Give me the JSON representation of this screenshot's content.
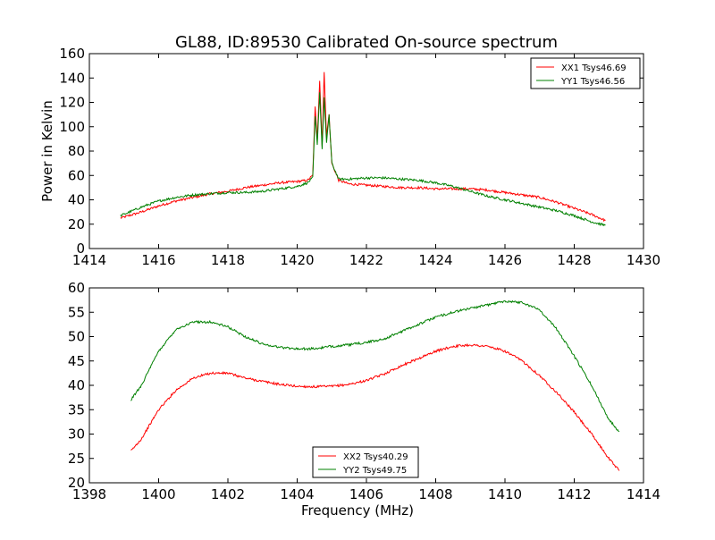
{
  "title": "GL88, ID:89530 Calibrated On-source spectrum",
  "chart_data": [
    {
      "type": "line",
      "xlabel": "",
      "ylabel": "Power in Kelvin",
      "xlim": [
        1414,
        1430
      ],
      "ylim": [
        0,
        160
      ],
      "xticks": [
        "1414",
        "1416",
        "1418",
        "1420",
        "1422",
        "1424",
        "1426",
        "1428",
        "1430"
      ],
      "yticks": [
        "0",
        "20",
        "40",
        "60",
        "80",
        "100",
        "120",
        "140",
        "160"
      ],
      "legend_position": "top-right",
      "series": [
        {
          "name": "XX1 Tsys46.69",
          "color": "#ff0000",
          "x": [
            1414.9,
            1415.5,
            1416.0,
            1416.5,
            1417.0,
            1417.5,
            1418.0,
            1418.5,
            1419.0,
            1419.5,
            1420.0,
            1420.3,
            1420.45,
            1420.52,
            1420.58,
            1420.65,
            1420.72,
            1420.78,
            1420.85,
            1420.92,
            1421.0,
            1421.2,
            1421.5,
            1422.0,
            1422.5,
            1423.0,
            1423.5,
            1424.0,
            1424.5,
            1425.0,
            1425.5,
            1426.0,
            1426.5,
            1427.0,
            1427.5,
            1428.0,
            1428.5,
            1428.9
          ],
          "y": [
            25,
            30,
            35,
            39,
            42,
            45,
            47,
            50,
            52,
            54,
            55,
            56,
            60,
            116,
            90,
            138,
            85,
            144,
            92,
            110,
            70,
            56,
            53,
            52,
            51,
            50,
            50,
            49,
            49,
            49,
            48,
            46,
            44,
            42,
            38,
            33,
            28,
            23
          ]
        },
        {
          "name": "YY1 Tsys46.56",
          "color": "#008000",
          "x": [
            1414.9,
            1415.5,
            1416.0,
            1416.5,
            1417.0,
            1417.5,
            1418.0,
            1418.5,
            1419.0,
            1419.5,
            1420.0,
            1420.3,
            1420.45,
            1420.52,
            1420.58,
            1420.65,
            1420.72,
            1420.78,
            1420.85,
            1420.92,
            1421.0,
            1421.2,
            1421.5,
            1422.0,
            1422.5,
            1423.0,
            1423.5,
            1424.0,
            1424.5,
            1425.0,
            1425.5,
            1426.0,
            1426.5,
            1427.0,
            1427.5,
            1428.0,
            1428.5,
            1428.9
          ],
          "y": [
            27,
            34,
            39,
            42,
            44,
            45,
            46,
            46,
            47,
            49,
            51,
            54,
            58,
            108,
            86,
            128,
            82,
            124,
            86,
            110,
            70,
            57,
            57,
            58,
            58,
            57,
            56,
            54,
            51,
            47,
            43,
            40,
            37,
            34,
            31,
            27,
            22,
            19
          ]
        }
      ]
    },
    {
      "type": "line",
      "xlabel": "Frequency (MHz)",
      "ylabel": "",
      "xlim": [
        1398,
        1414
      ],
      "ylim": [
        20,
        60
      ],
      "xticks": [
        "1398",
        "1400",
        "1402",
        "1404",
        "1406",
        "1408",
        "1410",
        "1412",
        "1414"
      ],
      "yticks": [
        "20",
        "25",
        "30",
        "35",
        "40",
        "45",
        "50",
        "55",
        "60"
      ],
      "legend_position": "bottom-center",
      "series": [
        {
          "name": "XX2 Tsys40.29",
          "color": "#ff0000",
          "x": [
            1399.2,
            1399.5,
            1400.0,
            1400.5,
            1401.0,
            1401.5,
            1402.0,
            1402.5,
            1403.0,
            1403.5,
            1404.0,
            1404.5,
            1405.0,
            1405.5,
            1406.0,
            1406.5,
            1407.0,
            1407.5,
            1408.0,
            1408.5,
            1409.0,
            1409.5,
            1410.0,
            1410.5,
            1411.0,
            1411.5,
            1412.0,
            1412.5,
            1413.0,
            1413.3
          ],
          "y": [
            26.5,
            29,
            35,
            39,
            41.5,
            42.5,
            42.5,
            41.5,
            40.8,
            40.2,
            39.8,
            39.7,
            39.8,
            40.2,
            41,
            42.3,
            44,
            45.5,
            47,
            48,
            48.3,
            48,
            47,
            45,
            42,
            38.5,
            34.5,
            30,
            25,
            22.5
          ]
        },
        {
          "name": "YY2 Tsys49.75",
          "color": "#008000",
          "x": [
            1399.2,
            1399.5,
            1400.0,
            1400.5,
            1401.0,
            1401.5,
            1402.0,
            1402.5,
            1403.0,
            1403.5,
            1404.0,
            1404.5,
            1405.0,
            1405.5,
            1406.0,
            1406.5,
            1407.0,
            1407.5,
            1408.0,
            1408.5,
            1409.0,
            1409.5,
            1410.0,
            1410.5,
            1411.0,
            1411.5,
            1412.0,
            1412.5,
            1413.0,
            1413.3
          ],
          "y": [
            37,
            40,
            47,
            51.5,
            53,
            53,
            52,
            50,
            48.5,
            47.8,
            47.5,
            47.5,
            48,
            48.3,
            48.8,
            49.5,
            51,
            52.5,
            54,
            55,
            55.8,
            56.5,
            57.3,
            57,
            55.5,
            51.5,
            46,
            40,
            33,
            30.5
          ]
        }
      ]
    }
  ]
}
